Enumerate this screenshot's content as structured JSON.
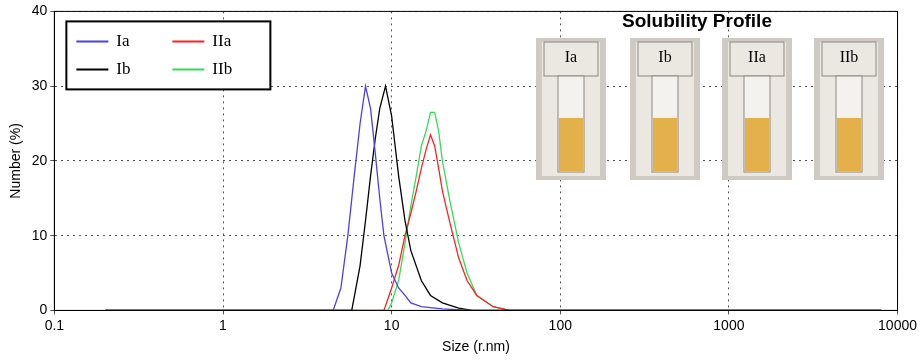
{
  "chart_data": {
    "type": "line",
    "x_label": "Size (r.nm)",
    "y_label": "Number (%)",
    "log": "x",
    "grid": true,
    "legend": "upper left",
    "xlim": [
      0.1,
      10000
    ],
    "xticks": [
      0.1,
      1,
      10,
      100,
      1000,
      10000
    ],
    "ylim": [
      0,
      40
    ],
    "yticks": [
      0,
      10,
      20,
      30,
      40
    ],
    "inset": {
      "title": "Solubility Profile",
      "labels": [
        "Ia",
        "Ib",
        "IIa",
        "IIb"
      ]
    },
    "series": [
      {
        "name": "Ia",
        "color": "#4b3fe6",
        "x": [
          0.2,
          4.5,
          5,
          5.5,
          6,
          6.5,
          7,
          7.5,
          8,
          8.5,
          9,
          10,
          11,
          12,
          13,
          15,
          20,
          30,
          8000
        ],
        "values": [
          0,
          0,
          3,
          10,
          18,
          25,
          30,
          27,
          21,
          15,
          10,
          5,
          3,
          2,
          1,
          0.5,
          0.2,
          0,
          0
        ]
      },
      {
        "name": "Ib",
        "color": "#000000",
        "x": [
          0.2,
          5.8,
          6.5,
          7,
          7.5,
          8,
          8.5,
          9.2,
          10,
          11,
          12,
          13,
          15,
          17,
          20,
          25,
          30,
          8000
        ],
        "values": [
          0,
          0,
          6,
          12,
          18,
          23,
          27,
          30,
          26,
          18,
          12,
          8,
          4,
          2,
          1,
          0.3,
          0,
          0
        ]
      },
      {
        "name": "IIa",
        "color": "#ff2020",
        "x": [
          0.2,
          9,
          10,
          11,
          12,
          13,
          14,
          15,
          16,
          17,
          18,
          19,
          20,
          22,
          25,
          28,
          32,
          40,
          50,
          8000
        ],
        "values": [
          0,
          0,
          3,
          6,
          10,
          13,
          16,
          19,
          21.5,
          23.5,
          22,
          19,
          16,
          12,
          7,
          4,
          2,
          0.5,
          0,
          0
        ]
      },
      {
        "name": "IIb",
        "color": "#33dd55",
        "x": [
          0.2,
          9.5,
          10,
          11,
          12,
          13,
          14,
          15,
          16,
          17,
          18,
          19,
          20,
          22,
          25,
          28,
          32,
          40,
          50,
          8000
        ],
        "values": [
          0,
          0,
          1,
          4,
          9,
          14,
          18,
          22,
          24,
          26.5,
          26.5,
          24,
          20,
          15,
          9,
          5,
          2,
          0.5,
          0,
          0
        ]
      }
    ]
  }
}
